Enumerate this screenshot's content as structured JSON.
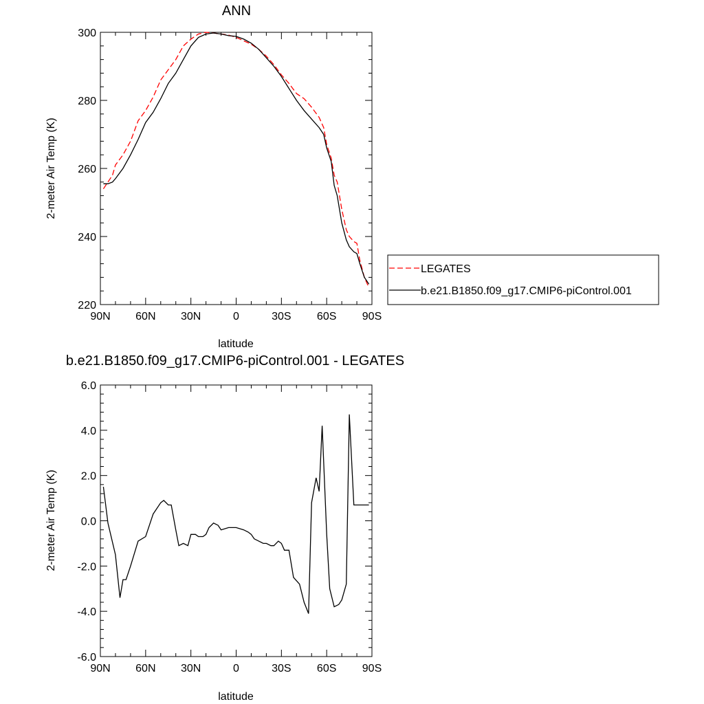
{
  "chart_data": [
    {
      "type": "line",
      "title": "ANN",
      "xlabel": "latitude",
      "ylabel": "2-meter Air Temp (K)",
      "xlim": [
        90,
        -90
      ],
      "ylim": [
        220,
        300
      ],
      "xticks": [
        90,
        60,
        30,
        0,
        -30,
        -60,
        -90
      ],
      "xtick_labels": [
        "90N",
        "60N",
        "30N",
        "0",
        "30S",
        "60S",
        "90S"
      ],
      "yticks": [
        220,
        240,
        260,
        280,
        300
      ],
      "ytick_labels": [
        "220",
        "240",
        "260",
        "280",
        "300"
      ],
      "legend_position": "right",
      "series": [
        {
          "name": "LEGATES",
          "color": "#ff0000",
          "dash": "dashed",
          "x": [
            88,
            85,
            82,
            80,
            75,
            70,
            65,
            60,
            55,
            50,
            45,
            40,
            35,
            30,
            25,
            20,
            15,
            10,
            5,
            0,
            -5,
            -10,
            -15,
            -20,
            -25,
            -30,
            -35,
            -40,
            -45,
            -50,
            -55,
            -58,
            -60,
            -63,
            -65,
            -67,
            -70,
            -73,
            -75,
            -78,
            -80,
            -82,
            -85,
            -88
          ],
          "values": [
            254,
            256,
            258,
            261,
            264,
            268,
            274,
            277,
            281,
            286,
            289,
            292,
            296,
            298,
            299.5,
            300,
            299.8,
            299.5,
            299.2,
            298.5,
            297.5,
            296.5,
            295,
            293,
            290.5,
            287.5,
            285,
            282,
            280.5,
            278,
            275,
            272,
            267,
            263,
            258,
            256,
            248,
            242,
            240,
            238.5,
            238,
            233,
            228,
            225
          ]
        },
        {
          "name": "b.e21.B1850.f09_g17.CMIP6-piControl.001",
          "color": "#000000",
          "dash": "solid",
          "x": [
            88,
            85,
            82,
            80,
            75,
            70,
            65,
            60,
            55,
            50,
            45,
            40,
            35,
            30,
            25,
            20,
            15,
            10,
            5,
            0,
            -5,
            -10,
            -15,
            -20,
            -25,
            -30,
            -35,
            -40,
            -45,
            -50,
            -55,
            -58,
            -60,
            -63,
            -65,
            -67,
            -70,
            -73,
            -75,
            -78,
            -80,
            -82,
            -85,
            -88
          ],
          "values": [
            255.5,
            255.5,
            256,
            257,
            260,
            264,
            268.5,
            273.5,
            276.5,
            280.5,
            285,
            288,
            292,
            296,
            298.5,
            299.5,
            299.8,
            299.5,
            299,
            298.8,
            298,
            296.8,
            295,
            292.5,
            290,
            287,
            283.5,
            280,
            277,
            274.5,
            272,
            270,
            266,
            262,
            255,
            252,
            244,
            239,
            237,
            235.5,
            235,
            232,
            228,
            226
          ]
        }
      ]
    },
    {
      "type": "line",
      "title": "b.e21.B1850.f09_g17.CMIP6-piControl.001 - LEGATES",
      "xlabel": "latitude",
      "ylabel": "2-meter Air Temp (K)",
      "xlim": [
        90,
        -90
      ],
      "ylim": [
        -6,
        6
      ],
      "xticks": [
        90,
        60,
        30,
        0,
        -30,
        -60,
        -90
      ],
      "xtick_labels": [
        "90N",
        "60N",
        "30N",
        "0",
        "30S",
        "60S",
        "90S"
      ],
      "yticks": [
        -6,
        -4,
        -2,
        0,
        2,
        4,
        6
      ],
      "ytick_labels": [
        "-6.0",
        "-4.0",
        "-2.0",
        "0.0",
        "2.0",
        "4.0",
        "6.0"
      ],
      "series": [
        {
          "color": "#000000",
          "dash": "solid",
          "x": [
            88,
            85,
            80,
            77,
            75,
            73,
            70,
            65,
            60,
            55,
            50,
            48,
            45,
            43,
            40,
            38,
            35,
            32,
            30,
            27,
            25,
            22,
            20,
            18,
            15,
            12,
            10,
            5,
            0,
            -5,
            -8,
            -10,
            -12,
            -15,
            -18,
            -20,
            -23,
            -25,
            -28,
            -30,
            -32,
            -35,
            -38,
            -42,
            -45,
            -48,
            -50,
            -53,
            -55,
            -57,
            -60,
            -62,
            -65,
            -68,
            -70,
            -73,
            -75,
            -78,
            -80,
            -83,
            -85,
            -88
          ],
          "values": [
            1.5,
            -0.1,
            -1.5,
            -3.4,
            -2.6,
            -2.6,
            -2.0,
            -0.9,
            -0.7,
            0.3,
            0.8,
            0.9,
            0.7,
            0.7,
            -0.4,
            -1.1,
            -1.0,
            -1.1,
            -0.6,
            -0.6,
            -0.7,
            -0.7,
            -0.6,
            -0.3,
            -0.1,
            -0.2,
            -0.4,
            -0.3,
            -0.3,
            -0.4,
            -0.5,
            -0.6,
            -0.8,
            -0.9,
            -1.0,
            -1.0,
            -1.1,
            -1.1,
            -0.9,
            -1.0,
            -1.3,
            -1.3,
            -2.5,
            -2.8,
            -3.6,
            -4.1,
            0.8,
            1.9,
            1.3,
            4.2,
            -0.6,
            -3.0,
            -3.8,
            -3.7,
            -3.5,
            -2.8,
            4.7,
            0.7,
            0.7,
            0.7,
            0.7,
            0.7
          ]
        }
      ]
    }
  ]
}
